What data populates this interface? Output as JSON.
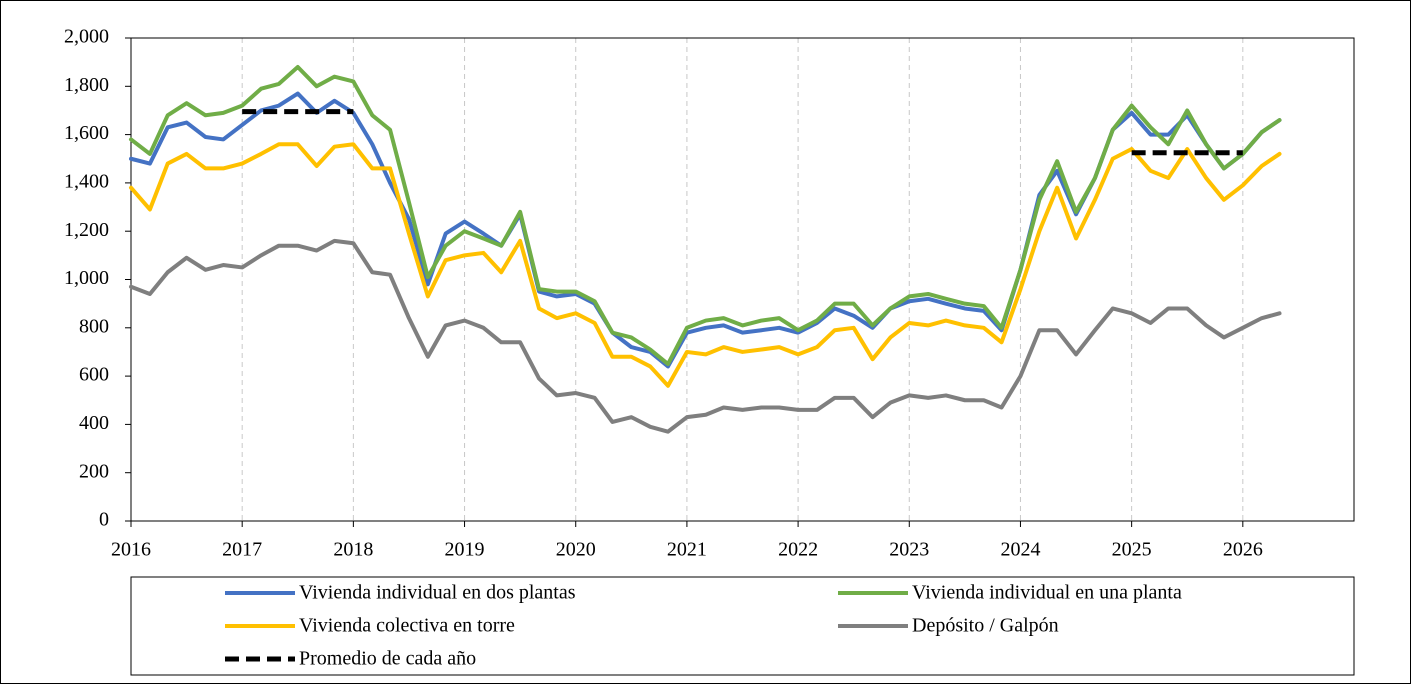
{
  "chart_data": {
    "type": "line",
    "x": [
      2016,
      2016.17,
      2016.33,
      2016.5,
      2016.67,
      2016.83,
      2017,
      2017.17,
      2017.33,
      2017.5,
      2017.67,
      2017.83,
      2018,
      2018.17,
      2018.33,
      2018.5,
      2018.67,
      2018.83,
      2019,
      2019.17,
      2019.33,
      2019.5,
      2019.67,
      2019.83,
      2020,
      2020.17,
      2020.33,
      2020.5,
      2020.67,
      2020.83,
      2021,
      2021.17,
      2021.33,
      2021.5,
      2021.67,
      2021.83,
      2022,
      2022.17,
      2022.33,
      2022.5,
      2022.67,
      2022.83,
      2023,
      2023.17,
      2023.33,
      2023.5,
      2023.67,
      2023.83,
      2024,
      2024.17,
      2024.33,
      2024.5,
      2024.67,
      2024.83,
      2025,
      2025.17,
      2025.33,
      2025.5,
      2025.67,
      2025.83,
      2026,
      2026.17,
      2026.33
    ],
    "series": [
      {
        "name": "Vivienda individual en dos plantas",
        "color": "#4472c4",
        "values": [
          1500,
          1480,
          1630,
          1650,
          1590,
          1580,
          1640,
          1700,
          1720,
          1770,
          1690,
          1740,
          1690,
          1560,
          1400,
          1250,
          980,
          1190,
          1240,
          1190,
          1140,
          1270,
          950,
          930,
          940,
          900,
          780,
          720,
          700,
          640,
          780,
          800,
          810,
          780,
          790,
          800,
          780,
          820,
          880,
          850,
          800,
          880,
          910,
          920,
          900,
          880,
          870,
          790,
          1040,
          1350,
          1450,
          1270,
          1420,
          1620,
          1690,
          1600,
          1600,
          1680,
          1560,
          1460,
          1520,
          1610,
          1660
        ]
      },
      {
        "name": "Vivienda individual en una planta",
        "color": "#70ad47",
        "values": [
          1580,
          1520,
          1680,
          1730,
          1680,
          1690,
          1720,
          1790,
          1810,
          1880,
          1800,
          1840,
          1820,
          1680,
          1620,
          1320,
          1010,
          1140,
          1200,
          1170,
          1140,
          1280,
          960,
          950,
          950,
          910,
          780,
          760,
          710,
          650,
          800,
          830,
          840,
          810,
          830,
          840,
          790,
          830,
          900,
          900,
          810,
          880,
          930,
          940,
          920,
          900,
          890,
          800,
          1040,
          1330,
          1490,
          1280,
          1420,
          1620,
          1720,
          1630,
          1560,
          1700,
          1560,
          1460,
          1520,
          1610,
          1660
        ]
      },
      {
        "name": "Vivienda colectiva en torre",
        "color": "#ffc000",
        "values": [
          1380,
          1290,
          1480,
          1520,
          1460,
          1460,
          1480,
          1520,
          1560,
          1560,
          1470,
          1550,
          1560,
          1460,
          1460,
          1190,
          930,
          1080,
          1100,
          1110,
          1030,
          1160,
          880,
          840,
          860,
          820,
          680,
          680,
          640,
          560,
          700,
          690,
          720,
          700,
          710,
          720,
          690,
          720,
          790,
          800,
          670,
          760,
          820,
          810,
          830,
          810,
          800,
          740,
          960,
          1200,
          1380,
          1170,
          1330,
          1500,
          1540,
          1450,
          1420,
          1540,
          1420,
          1330,
          1390,
          1470,
          1520
        ]
      },
      {
        "name": "Depósito / Galpón",
        "color": "#7f7f7f",
        "values": [
          970,
          940,
          1030,
          1090,
          1040,
          1060,
          1050,
          1100,
          1140,
          1140,
          1120,
          1160,
          1150,
          1030,
          1020,
          840,
          680,
          810,
          830,
          800,
          740,
          740,
          590,
          520,
          530,
          510,
          410,
          430,
          390,
          370,
          430,
          440,
          470,
          460,
          470,
          470,
          460,
          460,
          510,
          510,
          430,
          490,
          520,
          510,
          520,
          500,
          500,
          470,
          600,
          790,
          790,
          690,
          790,
          880,
          860,
          820,
          880,
          880,
          810,
          760,
          800,
          840,
          860
        ]
      },
      {
        "name": "Promedio de cada año",
        "color": "#000000",
        "dashed": true,
        "values": [
          null,
          null,
          null,
          null,
          null,
          null,
          1695,
          1695,
          1695,
          1695,
          1695,
          1695,
          1695,
          null,
          null,
          null,
          null,
          null,
          null,
          null,
          null,
          null,
          null,
          null,
          null,
          null,
          null,
          null,
          null,
          null,
          null,
          null,
          null,
          null,
          null,
          null,
          null,
          null,
          null,
          null,
          null,
          null,
          null,
          null,
          null,
          null,
          null,
          null,
          null,
          null,
          null,
          null,
          null,
          null,
          1525,
          1525,
          1525,
          1525,
          1525,
          1525,
          1525,
          null,
          null
        ]
      }
    ],
    "xlim": [
      2016,
      2027
    ],
    "xticks": [
      2016,
      2017,
      2018,
      2019,
      2020,
      2021,
      2022,
      2023,
      2024,
      2025,
      2026
    ],
    "ylim": [
      0,
      2000
    ],
    "yticks": [
      0,
      200,
      400,
      600,
      800,
      {
        "value": 1000,
        "label": "1,000"
      },
      {
        "value": 1200,
        "label": "1,200"
      },
      {
        "value": 1400,
        "label": "1,400"
      },
      {
        "value": 1600,
        "label": "1,600"
      },
      {
        "value": 1800,
        "label": "1,800"
      },
      {
        "value": 2000,
        "label": "2,000"
      }
    ],
    "grid": true,
    "legend": "bottom"
  }
}
